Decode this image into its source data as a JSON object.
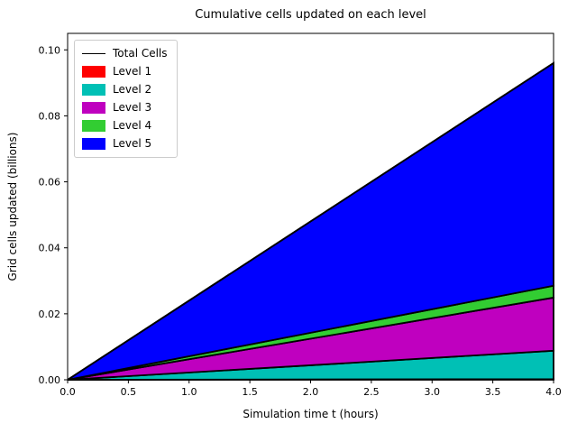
{
  "chart_data": {
    "type": "area",
    "stacked": true,
    "title": "Cumulative cells updated on each level",
    "xlabel": "Simulation time t (hours)",
    "ylabel": "Grid cells updated (billions)",
    "xlim": [
      0,
      4
    ],
    "ylim": [
      0,
      0.105
    ],
    "grid": false,
    "x": [
      0,
      4
    ],
    "series": [
      {
        "name": "Level 1",
        "color": "#ff0000",
        "values": [
          0,
          0.0002
        ]
      },
      {
        "name": "Level 2",
        "color": "#00c0b5",
        "values": [
          0,
          0.0086
        ]
      },
      {
        "name": "Level 3",
        "color": "#bf00bf",
        "values": [
          0,
          0.0161
        ]
      },
      {
        "name": "Level 4",
        "color": "#32cd32",
        "values": [
          0,
          0.0036
        ]
      },
      {
        "name": "Level 5",
        "color": "#0000ff",
        "values": [
          0,
          0.0675
        ]
      }
    ],
    "total_line": {
      "name": "Total Cells",
      "color": "#000000",
      "values": [
        0,
        0.096
      ]
    },
    "xticks": [
      0,
      0.5,
      1.0,
      1.5,
      2.0,
      2.5,
      3.0,
      3.5,
      4.0
    ],
    "xtick_labels": [
      "0.0",
      "0.5",
      "1.0",
      "1.5",
      "2.0",
      "2.5",
      "3.0",
      "3.5",
      "4.0"
    ],
    "yticks": [
      0,
      0.02,
      0.04,
      0.06,
      0.08,
      0.1
    ],
    "ytick_labels": [
      "0.00",
      "0.02",
      "0.04",
      "0.06",
      "0.08",
      "0.10"
    ],
    "legend_position": "upper left",
    "legend": [
      {
        "label": "Total Cells",
        "swatch": "line",
        "color": "#000000"
      },
      {
        "label": "Level 1",
        "swatch": "patch",
        "color": "#ff0000"
      },
      {
        "label": "Level 2",
        "swatch": "patch",
        "color": "#00c0b5"
      },
      {
        "label": "Level 3",
        "swatch": "patch",
        "color": "#bf00bf"
      },
      {
        "label": "Level 4",
        "swatch": "patch",
        "color": "#32cd32"
      },
      {
        "label": "Level 5",
        "swatch": "patch",
        "color": "#0000ff"
      }
    ]
  }
}
